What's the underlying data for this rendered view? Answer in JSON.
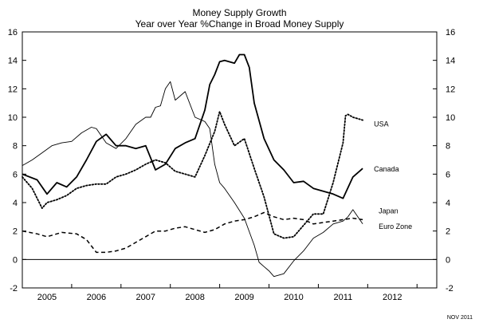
{
  "chart_data": {
    "type": "line",
    "title": "Money Supply Growth",
    "subtitle": "Year over Year %Change in Broad Money Supply",
    "note": "NOV 2011",
    "xlabel": "",
    "ylabel": "",
    "xlim": [
      2004.5,
      2012.9
    ],
    "ylim": [
      -2,
      16
    ],
    "y_ticks": [
      -2,
      0,
      2,
      4,
      6,
      8,
      10,
      12,
      14,
      16
    ],
    "x_tick_labels": [
      "2005",
      "2006",
      "2007",
      "2008",
      "2009",
      "2010",
      "2011",
      "2012"
    ],
    "x_tick_positions": [
      2005,
      2006,
      2007,
      2008,
      2009,
      2010,
      2011,
      2012
    ],
    "x_boundaries": [
      2004.5,
      2005.5,
      2006.5,
      2007.5,
      2008.5,
      2009.5,
      2010.5,
      2011.5,
      2012.5
    ],
    "grid": false,
    "zero_line": true,
    "dual_y_axis": true,
    "series": [
      {
        "name": "USA",
        "style": "dotted",
        "color": "#000000",
        "x": [
          2004.5,
          2004.7,
          2004.9,
          2005.0,
          2005.2,
          2005.4,
          2005.6,
          2005.8,
          2006.0,
          2006.2,
          2006.4,
          2006.6,
          2006.8,
          2007.0,
          2007.2,
          2007.4,
          2007.6,
          2007.8,
          2008.0,
          2008.2,
          2008.4,
          2008.5,
          2008.6,
          2008.8,
          2009.0,
          2009.2,
          2009.4,
          2009.6,
          2009.8,
          2010.0,
          2010.2,
          2010.4,
          2010.6,
          2010.8,
          2011.0,
          2011.05,
          2011.1,
          2011.2,
          2011.3,
          2011.4
        ],
        "y": [
          5.8,
          5.0,
          3.6,
          4.0,
          4.2,
          4.5,
          5.0,
          5.2,
          5.3,
          5.3,
          5.8,
          6.0,
          6.3,
          6.7,
          7.0,
          6.8,
          6.2,
          6.0,
          5.8,
          7.3,
          9.0,
          10.4,
          9.5,
          8.0,
          8.5,
          6.4,
          4.4,
          1.8,
          1.5,
          1.6,
          2.4,
          3.2,
          3.2,
          5.4,
          8.2,
          10.1,
          10.2,
          10.0,
          9.9,
          9.8
        ]
      },
      {
        "name": "Canada",
        "style": "solid-thick",
        "color": "#000000",
        "x": [
          2004.5,
          2004.8,
          2005.0,
          2005.2,
          2005.4,
          2005.6,
          2005.8,
          2006.0,
          2006.2,
          2006.4,
          2006.6,
          2006.8,
          2007.0,
          2007.2,
          2007.4,
          2007.6,
          2007.8,
          2008.0,
          2008.2,
          2008.3,
          2008.4,
          2008.5,
          2008.6,
          2008.8,
          2008.9,
          2009.0,
          2009.1,
          2009.2,
          2009.4,
          2009.6,
          2009.8,
          2010.0,
          2010.2,
          2010.4,
          2010.6,
          2010.8,
          2011.0,
          2011.2,
          2011.4
        ],
        "y": [
          6.0,
          5.6,
          4.6,
          5.4,
          5.1,
          5.8,
          7.0,
          8.3,
          8.8,
          8.0,
          8.0,
          7.8,
          8.0,
          6.3,
          6.7,
          7.8,
          8.2,
          8.5,
          10.5,
          12.3,
          13.0,
          13.9,
          14.0,
          13.8,
          14.4,
          14.4,
          13.5,
          11.0,
          8.5,
          7.0,
          6.3,
          5.4,
          5.5,
          5.0,
          4.8,
          4.6,
          4.3,
          5.8,
          6.4
        ]
      },
      {
        "name": "Japan",
        "style": "dashed",
        "color": "#000000",
        "x": [
          2004.5,
          2004.8,
          2005.0,
          2005.3,
          2005.6,
          2005.8,
          2006.0,
          2006.2,
          2006.4,
          2006.6,
          2006.8,
          2007.0,
          2007.2,
          2007.4,
          2007.6,
          2007.8,
          2008.0,
          2008.2,
          2008.4,
          2008.6,
          2008.8,
          2009.0,
          2009.2,
          2009.4,
          2009.6,
          2009.8,
          2010.0,
          2010.2,
          2010.4,
          2010.6,
          2010.8,
          2011.0,
          2011.2,
          2011.4
        ],
        "y": [
          2.0,
          1.8,
          1.6,
          1.9,
          1.8,
          1.4,
          0.5,
          0.5,
          0.6,
          0.8,
          1.2,
          1.6,
          2.0,
          2.0,
          2.2,
          2.3,
          2.1,
          1.9,
          2.1,
          2.5,
          2.7,
          2.8,
          3.0,
          3.3,
          3.0,
          2.8,
          2.9,
          2.8,
          2.5,
          2.6,
          2.7,
          2.8,
          2.9,
          2.8
        ]
      },
      {
        "name": "Euro Zone",
        "style": "solid-thin",
        "color": "#000000",
        "x": [
          2004.5,
          2004.7,
          2004.9,
          2005.1,
          2005.3,
          2005.5,
          2005.7,
          2005.9,
          2006.0,
          2006.2,
          2006.4,
          2006.6,
          2006.8,
          2007.0,
          2007.1,
          2007.2,
          2007.3,
          2007.4,
          2007.5,
          2007.6,
          2007.8,
          2008.0,
          2008.2,
          2008.3,
          2008.4,
          2008.5,
          2008.6,
          2008.8,
          2009.0,
          2009.2,
          2009.3,
          2009.4,
          2009.5,
          2009.6,
          2009.8,
          2010.0,
          2010.2,
          2010.4,
          2010.6,
          2010.8,
          2011.0,
          2011.1,
          2011.2,
          2011.4
        ],
        "y": [
          6.6,
          7.0,
          7.5,
          8.0,
          8.2,
          8.3,
          8.9,
          9.3,
          9.2,
          8.2,
          7.8,
          8.5,
          9.5,
          10.0,
          10.0,
          10.7,
          10.8,
          12.0,
          12.5,
          11.2,
          11.8,
          10.0,
          9.7,
          9.2,
          6.7,
          5.4,
          5.0,
          4.0,
          2.9,
          1.0,
          -0.2,
          -0.5,
          -0.8,
          -1.2,
          -1.0,
          -0.1,
          0.6,
          1.5,
          1.9,
          2.5,
          2.7,
          3.0,
          3.5,
          2.5
        ]
      }
    ],
    "series_labels": [
      {
        "text": "USA",
        "series": "USA"
      },
      {
        "text": "Canada",
        "series": "Canada"
      },
      {
        "text": "Japan",
        "series": "Japan"
      },
      {
        "text": "Euro Zone",
        "series": "Euro Zone"
      }
    ]
  }
}
